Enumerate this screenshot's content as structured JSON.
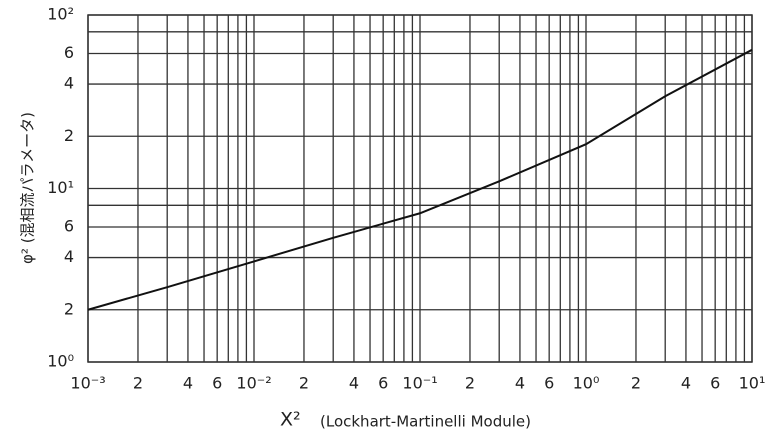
{
  "chart_data": {
    "type": "line",
    "x_label": "X²",
    "x_label_note": "(Lockhart-Martinelli Module)",
    "y_label": "φ² (混相流パラメータ)",
    "xlog": true,
    "ylog": true,
    "grid": true,
    "x": [
      0.001,
      0.003,
      0.01,
      0.03,
      0.1,
      0.3,
      1,
      3,
      10
    ],
    "series": [
      {
        "color": "#111111",
        "values": [
          2.0,
          2.7,
          3.8,
          5.2,
          7.2,
          11,
          18,
          34,
          63
        ]
      }
    ],
    "xlim": [
      0.001,
      10
    ],
    "ylim": [
      1,
      100
    ],
    "xticks": [
      {
        "value": 0.001,
        "label": "10⁻³"
      },
      {
        "value": 0.002,
        "label": "2"
      },
      {
        "value": 0.004,
        "label": "4"
      },
      {
        "value": 0.006,
        "label": "6"
      },
      {
        "value": 0.01,
        "label": "10⁻²"
      },
      {
        "value": 0.02,
        "label": "2"
      },
      {
        "value": 0.04,
        "label": "4"
      },
      {
        "value": 0.06,
        "label": "6"
      },
      {
        "value": 0.1,
        "label": "10⁻¹"
      },
      {
        "value": 0.2,
        "label": "2"
      },
      {
        "value": 0.4,
        "label": "4"
      },
      {
        "value": 0.6,
        "label": "6"
      },
      {
        "value": 1,
        "label": "10⁰"
      },
      {
        "value": 2,
        "label": "2"
      },
      {
        "value": 4,
        "label": "4"
      },
      {
        "value": 6,
        "label": "6"
      },
      {
        "value": 10,
        "label": "10¹"
      }
    ],
    "xgrid": [
      0.003,
      0.005,
      0.007,
      0.008,
      0.009,
      0.03,
      0.05,
      0.07,
      0.08,
      0.09,
      0.3,
      0.5,
      0.7,
      0.8,
      0.9,
      3,
      5,
      7,
      8,
      9
    ],
    "yticks": [
      {
        "value": 1,
        "label": "10⁰"
      },
      2,
      4,
      6,
      {
        "value": 10,
        "label": "10¹"
      },
      {
        "value": 20,
        "label": "2"
      },
      {
        "value": 40,
        "label": "4"
      },
      {
        "value": 60,
        "label": "6"
      },
      {
        "value": 100,
        "label": "10²"
      }
    ],
    "ygrid": [
      8,
      80
    ]
  }
}
